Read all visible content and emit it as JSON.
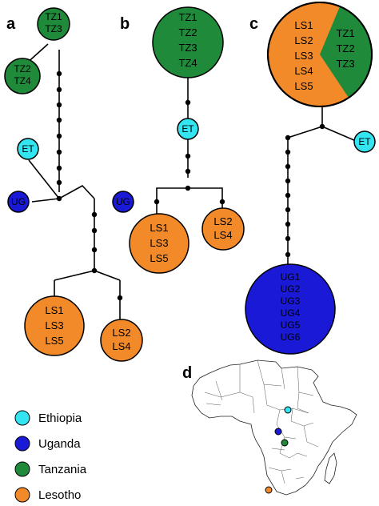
{
  "colors": {
    "ethiopia": "#33e5f0",
    "uganda": "#1a1ad6",
    "tanzania": "#1f8a3a",
    "lesotho": "#f28a2a"
  },
  "panels": {
    "a": {
      "letter": "a",
      "nodes": {
        "tz1_tz3": [
          "TZ1",
          "TZ3"
        ],
        "tz2_tz4": [
          "TZ2",
          "TZ4"
        ],
        "et": [
          "ET"
        ],
        "ug": [
          "UG"
        ],
        "ls1_ls3_ls5": [
          "LS1",
          "LS3",
          "LS5"
        ],
        "ls2_ls4": [
          "LS2",
          "LS4"
        ]
      }
    },
    "b": {
      "letter": "b",
      "nodes": {
        "tz_all": [
          "TZ1",
          "TZ2",
          "TZ3",
          "TZ4"
        ],
        "et": [
          "ET"
        ],
        "ug": [
          "UG"
        ],
        "ls1_ls3_ls5": [
          "LS1",
          "LS3",
          "LS5"
        ],
        "ls2_ls4": [
          "LS2",
          "LS4"
        ]
      }
    },
    "c": {
      "letter": "c",
      "nodes": {
        "ls_group": [
          "LS1",
          "LS2",
          "LS3",
          "LS4",
          "LS5"
        ],
        "tz_group": [
          "TZ1",
          "TZ2",
          "TZ3"
        ],
        "et": [
          "ET"
        ],
        "ug_group": [
          "UG1",
          "UG2",
          "UG3",
          "UG4",
          "UG5",
          "UG6"
        ]
      }
    },
    "d": {
      "letter": "d"
    }
  },
  "legend": [
    {
      "label": "Ethiopia",
      "color_key": "ethiopia"
    },
    {
      "label": "Uganda",
      "color_key": "uganda"
    },
    {
      "label": "Tanzania",
      "color_key": "tanzania"
    },
    {
      "label": "Lesotho",
      "color_key": "lesotho"
    }
  ]
}
